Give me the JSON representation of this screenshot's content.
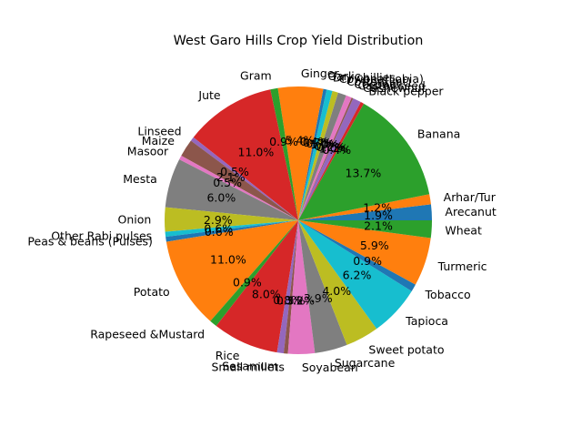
{
  "chart_data": {
    "type": "pie",
    "title": "West Garo Hills Crop Yield Distribution",
    "start_angle_deg": 0,
    "counterclock": true,
    "value_format": "percent_1dp",
    "slices": [
      {
        "label": "Arecanut",
        "value": 1.9,
        "color": "#1f77b4"
      },
      {
        "label": "Arhar/Tur",
        "value": 1.2,
        "color": "#ff7f0e"
      },
      {
        "label": "Banana",
        "value": 13.6,
        "color": "#2ca02c"
      },
      {
        "label": "Black pepper",
        "value": 0.4,
        "color": "#d62728"
      },
      {
        "label": "Cashewnut",
        "value": 1.0,
        "color": "#9467bd"
      },
      {
        "label": "Castor seed",
        "value": 0.2,
        "color": "#8c564b"
      },
      {
        "label": "Coconut",
        "value": 0.7,
        "color": "#e377c2"
      },
      {
        "label": "Cotton(lint)",
        "value": 1.0,
        "color": "#7f7f7f"
      },
      {
        "label": "Cowpea(Lobia)",
        "value": 0.7,
        "color": "#bcbd22"
      },
      {
        "label": "Dry chillies",
        "value": 0.7,
        "color": "#17becf"
      },
      {
        "label": "Garlic",
        "value": 0.4,
        "color": "#1f77b4"
      },
      {
        "label": "Ginger",
        "value": 5.4,
        "color": "#ff7f0e"
      },
      {
        "label": "Gram",
        "value": 0.9,
        "color": "#2ca02c"
      },
      {
        "label": "Jute",
        "value": 10.9,
        "color": "#d62728"
      },
      {
        "label": "Linseed",
        "value": 0.5,
        "color": "#9467bd"
      },
      {
        "label": "Maize",
        "value": 2.1,
        "color": "#8c564b"
      },
      {
        "label": "Masoor",
        "value": 0.5,
        "color": "#e377c2"
      },
      {
        "label": "Mesta",
        "value": 5.9,
        "color": "#7f7f7f"
      },
      {
        "label": "Onion",
        "value": 2.9,
        "color": "#bcbd22"
      },
      {
        "label": "Other Rabi pulses",
        "value": 0.6,
        "color": "#17becf"
      },
      {
        "label": "Peas & beans (Pulses)",
        "value": 0.6,
        "color": "#1f77b4"
      },
      {
        "label": "Potato",
        "value": 10.9,
        "color": "#ff7f0e"
      },
      {
        "label": "Rapeseed &Mustard",
        "value": 0.9,
        "color": "#2ca02c"
      },
      {
        "label": "Rice",
        "value": 7.9,
        "color": "#d62728"
      },
      {
        "label": "Sesamum",
        "value": 0.8,
        "color": "#9467bd"
      },
      {
        "label": "Small millets",
        "value": 0.5,
        "color": "#8c564b"
      },
      {
        "label": "Soyabean",
        "value": 3.2,
        "color": "#e377c2"
      },
      {
        "label": "Sugarcane",
        "value": 3.9,
        "color": "#7f7f7f"
      },
      {
        "label": "Sweet potato",
        "value": 4.0,
        "color": "#bcbd22"
      },
      {
        "label": "Tapioca",
        "value": 6.1,
        "color": "#17becf"
      },
      {
        "label": "Tobacco",
        "value": 0.9,
        "color": "#1f77b4"
      },
      {
        "label": "Turmeric",
        "value": 5.8,
        "color": "#ff7f0e"
      },
      {
        "label": "Wheat",
        "value": 2.1,
        "color": "#2ca02c"
      }
    ]
  }
}
